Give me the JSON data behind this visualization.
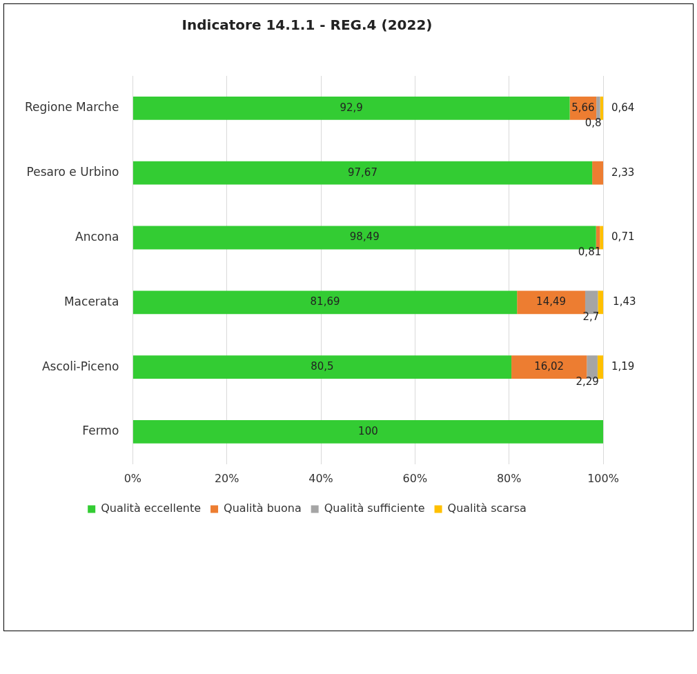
{
  "chart_data": {
    "type": "bar",
    "orientation": "horizontal",
    "stacked": true,
    "title": "Indicatore 14.1.1 - REG.4 (2022)",
    "categories": [
      "Regione Marche",
      "Pesaro e Urbino",
      "Ancona",
      "Macerata",
      "Ascoli-Piceno",
      "Fermo"
    ],
    "series": [
      {
        "name": "Qualità eccellente",
        "color": "#33cc33",
        "values": [
          92.9,
          97.67,
          98.49,
          81.69,
          80.5,
          100
        ],
        "value_labels": [
          "92,9",
          "97,67",
          "98,49",
          "81,69",
          "80,5",
          "100"
        ]
      },
      {
        "name": "Qualità buona",
        "color": "#ed7d31",
        "values": [
          5.66,
          2.33,
          0.81,
          14.49,
          16.02,
          null
        ],
        "value_labels": [
          "5,66",
          "2,33",
          "0,81",
          "14,49",
          "16,02",
          null
        ]
      },
      {
        "name": "Qualità sufficiente",
        "color": "#a5a5a5",
        "values": [
          0.8,
          null,
          null,
          2.7,
          2.29,
          null
        ],
        "value_labels": [
          "0,8",
          null,
          null,
          "2,7",
          "2,29",
          null
        ]
      },
      {
        "name": "Qualità scarsa",
        "color": "#ffc000",
        "values": [
          0.64,
          null,
          0.71,
          1.43,
          1.19,
          null
        ],
        "value_labels": [
          "0,64",
          null,
          "0,71",
          "1,43",
          "1,19",
          null
        ]
      }
    ],
    "xlim": [
      0,
      100
    ],
    "xticks": [
      {
        "value": 0,
        "label": "0%"
      },
      {
        "value": 20,
        "label": "20%"
      },
      {
        "value": 40,
        "label": "40%"
      },
      {
        "value": 60,
        "label": "60%"
      },
      {
        "value": 80,
        "label": "80%"
      },
      {
        "value": 100,
        "label": "100%"
      }
    ],
    "grid": "x",
    "legend": "bottom"
  }
}
